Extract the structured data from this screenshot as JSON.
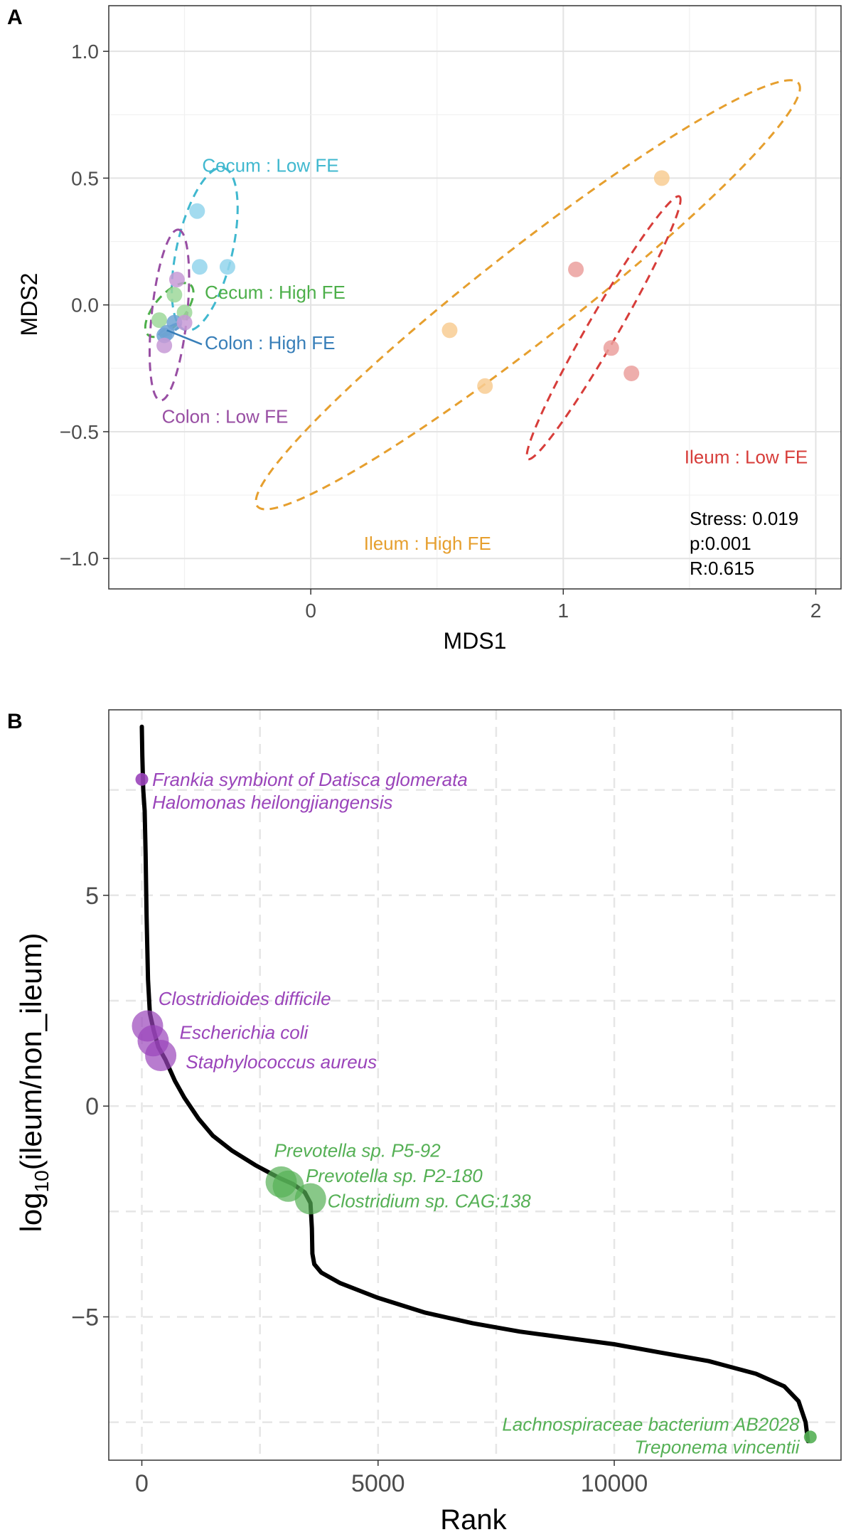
{
  "chart_data": [
    {
      "type": "scatter",
      "panel_label": "A",
      "xlabel": "MDS1",
      "ylabel": "MDS2",
      "xlim": [
        -0.8,
        2.1
      ],
      "ylim": [
        -1.12,
        1.18
      ],
      "x_ticks": [
        {
          "value": 0,
          "label": "0"
        },
        {
          "value": 1,
          "label": "1"
        },
        {
          "value": 2,
          "label": "2"
        }
      ],
      "y_ticks": [
        {
          "value": 1.0,
          "label": "1.0"
        },
        {
          "value": 0.5,
          "label": "0.5"
        },
        {
          "value": 0.0,
          "label": "0.0"
        },
        {
          "value": -0.5,
          "label": "−0.5"
        },
        {
          "value": -1.0,
          "label": "−1.0"
        }
      ],
      "grid": true,
      "groups": [
        {
          "name": "Cecum : Low  FE",
          "color": "#40B8CF",
          "point_color": "#93D5EC",
          "points": [
            [
              -0.45,
              0.37
            ],
            [
              -0.44,
              0.15
            ],
            [
              -0.33,
              0.15
            ]
          ],
          "ellipse": {
            "cx": -0.42,
            "cy": 0.22,
            "rx": 0.33,
            "ry": 0.11,
            "angle": -77
          },
          "label": {
            "x": -0.43,
            "y": 0.55,
            "anchor": "start"
          }
        },
        {
          "name": "Cecum : High  FE",
          "color": "#4DAF4A",
          "point_color": "#9ED89A",
          "points": [
            [
              -0.6,
              -0.06
            ],
            [
              -0.54,
              0.04
            ],
            [
              -0.5,
              -0.03
            ]
          ],
          "ellipse": {
            "cx": -0.56,
            "cy": -0.02,
            "rx": 0.13,
            "ry": 0.06,
            "angle": -50
          },
          "label": {
            "x": -0.42,
            "y": 0.05,
            "anchor": "start"
          }
        },
        {
          "name": "Colon : High  FE",
          "color": "#377EB8",
          "point_color": "#6FA3D5",
          "points": [
            [
              -0.58,
              -0.12
            ],
            [
              -0.54,
              -0.07
            ],
            [
              -0.57,
              -0.11
            ]
          ],
          "ellipse": {
            "cx": -0.56,
            "cy": -0.1,
            "rx": 0.05,
            "ry": 0.012,
            "angle": -30
          },
          "label": {
            "x": -0.42,
            "y": -0.15,
            "anchor": "start"
          }
        },
        {
          "name": "Colon : Low  FE",
          "color": "#984EA3",
          "point_color": "#C79AD6",
          "points": [
            [
              -0.53,
              0.1
            ],
            [
              -0.5,
              -0.07
            ],
            [
              -0.58,
              -0.16
            ]
          ],
          "ellipse": {
            "cx": -0.56,
            "cy": -0.04,
            "rx": 0.34,
            "ry": 0.07,
            "angle": -84
          },
          "label": {
            "x": -0.59,
            "y": -0.44,
            "anchor": "start"
          }
        },
        {
          "name": "Ileum : High  FE",
          "color": "#E69F2E",
          "point_color": "#F8CD93",
          "points": [
            [
              0.55,
              -0.1
            ],
            [
              0.69,
              -0.32
            ],
            [
              1.39,
              0.5
            ]
          ],
          "ellipse": {
            "cx": 0.86,
            "cy": 0.04,
            "rx": 1.36,
            "ry": 0.18,
            "angle": -38
          },
          "label": {
            "x": 0.21,
            "y": -0.94,
            "anchor": "start"
          }
        },
        {
          "name": "Ileum : Low  FE",
          "color": "#D73D3A",
          "point_color": "#EBA09E",
          "points": [
            [
              1.05,
              0.14
            ],
            [
              1.19,
              -0.17
            ],
            [
              1.27,
              -0.27
            ]
          ],
          "ellipse": {
            "cx": 1.16,
            "cy": -0.09,
            "rx": 0.6,
            "ry": 0.06,
            "angle": -60
          },
          "label": {
            "x": 1.48,
            "y": -0.6,
            "anchor": "start"
          }
        }
      ],
      "stats": [
        "Stress: 0.019",
        "p:0.001",
        "R:0.615"
      ]
    },
    {
      "type": "line",
      "panel_label": "B",
      "xlabel": "Rank",
      "ylabel_main": "log",
      "ylabel_sub": "10",
      "ylabel_rest": "(ileum/non_ileum)",
      "xlim": [
        -700,
        14800
      ],
      "ylim": [
        -8.4,
        9.4
      ],
      "x_ticks": [
        {
          "value": 0,
          "label": "0"
        },
        {
          "value": 5000,
          "label": "5000"
        },
        {
          "value": 10000,
          "label": "10000"
        }
      ],
      "y_ticks": [
        {
          "value": 5,
          "label": "5"
        },
        {
          "value": 0,
          "label": "0"
        },
        {
          "value": -5,
          "label": "−5"
        }
      ],
      "grid": true,
      "curve": [
        [
          0,
          9.0
        ],
        [
          10,
          8.3
        ],
        [
          30,
          7.5
        ],
        [
          60,
          7.0
        ],
        [
          80,
          6.0
        ],
        [
          100,
          4.5
        ],
        [
          130,
          3.0
        ],
        [
          170,
          2.2
        ],
        [
          250,
          1.8
        ],
        [
          350,
          1.4
        ],
        [
          500,
          1.1
        ],
        [
          700,
          0.6
        ],
        [
          900,
          0.2
        ],
        [
          1200,
          -0.3
        ],
        [
          1500,
          -0.7
        ],
        [
          1900,
          -1.05
        ],
        [
          2400,
          -1.4
        ],
        [
          2900,
          -1.7
        ],
        [
          3200,
          -1.85
        ],
        [
          3450,
          -2.05
        ],
        [
          3570,
          -2.3
        ],
        [
          3600,
          -2.9
        ],
        [
          3610,
          -3.5
        ],
        [
          3650,
          -3.75
        ],
        [
          3800,
          -3.95
        ],
        [
          4200,
          -4.2
        ],
        [
          5000,
          -4.55
        ],
        [
          6000,
          -4.9
        ],
        [
          7000,
          -5.15
        ],
        [
          8000,
          -5.35
        ],
        [
          9000,
          -5.5
        ],
        [
          10000,
          -5.65
        ],
        [
          11000,
          -5.85
        ],
        [
          12000,
          -6.05
        ],
        [
          13000,
          -6.35
        ],
        [
          13600,
          -6.65
        ],
        [
          13900,
          -7.0
        ],
        [
          14050,
          -7.5
        ],
        [
          14100,
          -7.95
        ]
      ],
      "curve_color": "#000000",
      "highlights": [
        {
          "x": 0,
          "y": 7.75,
          "size": "small",
          "color": "#9A44BA",
          "labels": [
            "Frankia symbiont of Datisca glomerata",
            "Halomonas heilongjiangensis"
          ],
          "label_x": 220,
          "label_y": 7.75,
          "anchor": "start",
          "two_line": true
        },
        {
          "x": 120,
          "y": 1.9,
          "size": "large",
          "color": "#9A44BA",
          "labels": [
            "Clostridioides difficile"
          ],
          "label_x": 350,
          "label_y": 2.55,
          "anchor": "start"
        },
        {
          "x": 240,
          "y": 1.55,
          "size": "large",
          "color": "#9A44BA",
          "labels": [
            "Escherichia coli"
          ],
          "label_x": 800,
          "label_y": 1.75,
          "anchor": "start"
        },
        {
          "x": 400,
          "y": 1.2,
          "size": "large",
          "color": "#9A44BA",
          "labels": [
            "Staphylococcus aureus"
          ],
          "label_x": 930,
          "label_y": 1.05,
          "anchor": "start"
        },
        {
          "x": 2950,
          "y": -1.8,
          "size": "large",
          "color": "#55B055",
          "labels": [
            "Prevotella sp. P5-92"
          ],
          "label_x": 2800,
          "label_y": -1.05,
          "anchor": "start"
        },
        {
          "x": 3100,
          "y": -1.9,
          "size": "large",
          "color": "#55B055",
          "labels": [
            "Prevotella sp. P2-180"
          ],
          "label_x": 3470,
          "label_y": -1.65,
          "anchor": "start"
        },
        {
          "x": 3570,
          "y": -2.2,
          "size": "large",
          "color": "#55B055",
          "labels": [
            "Clostridium sp. CAG:138"
          ],
          "label_x": 3930,
          "label_y": -2.25,
          "anchor": "start"
        },
        {
          "x": 14150,
          "y": -7.85,
          "size": "small",
          "color": "#55B055",
          "labels": [
            "Lachnospiraceae bacterium AB2028",
            "Treponema vincentii"
          ],
          "label_x": 13920,
          "label_y": -7.55,
          "anchor": "end",
          "two_line": true
        }
      ]
    }
  ]
}
